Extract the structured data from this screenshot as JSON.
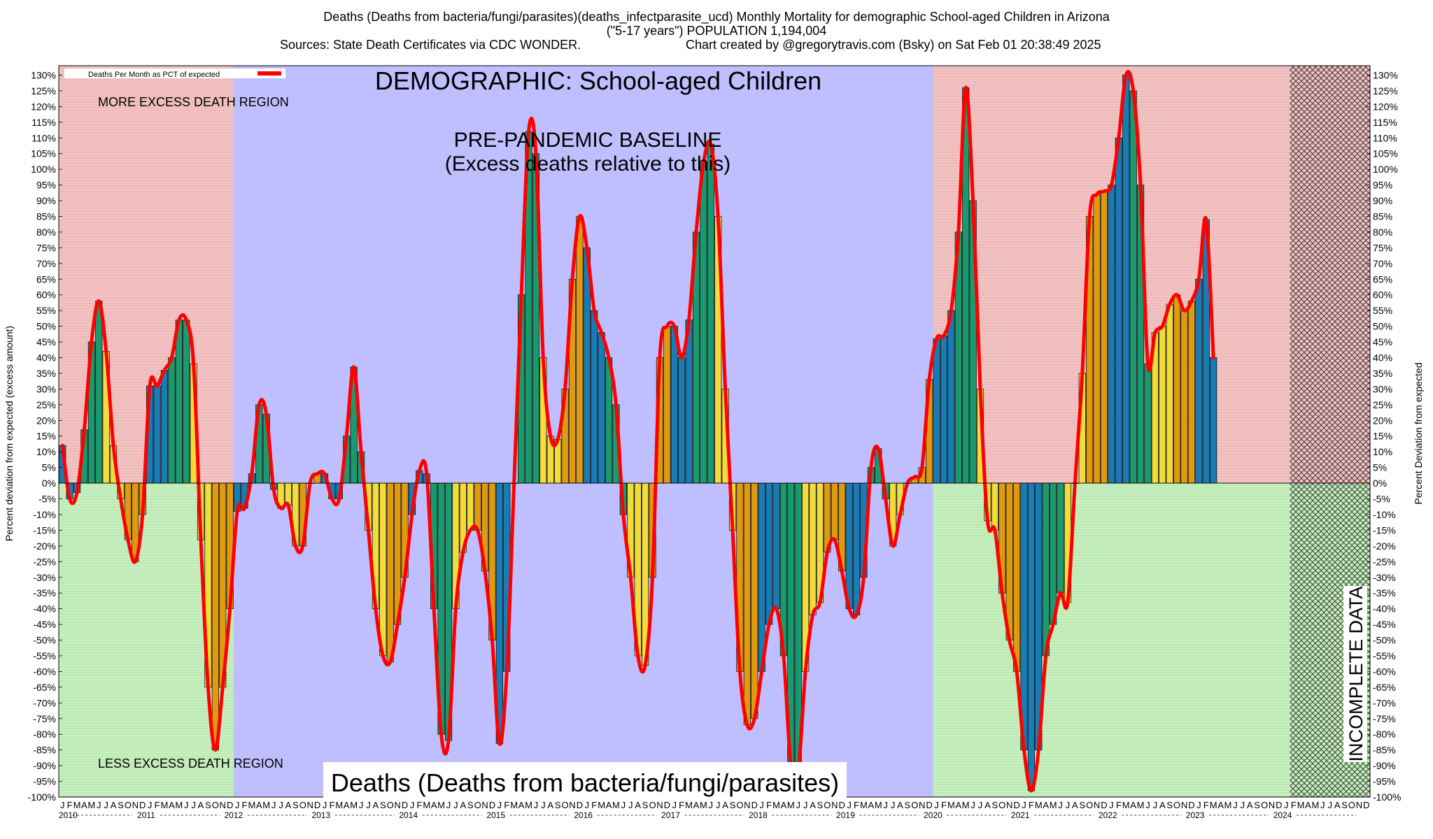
{
  "title": {
    "line1": "Deaths (Deaths from bacteria/fungi/parasites)(deaths_infectparasite_ucd) Monthly Mortality for demographic School-aged Children in Arizona",
    "line2": "(\"5-17 years\") POPULATION 1,194,004",
    "line3_sources": "Sources: State Death Certificates via CDC WONDER.",
    "line3_credit": "Chart created by @gregorytravis.com (Bsky) on Sat Feb 01 20:38:49 2025"
  },
  "legend": {
    "label": "Deaths Per Month as PCT of expected",
    "color": "#ff0000"
  },
  "annotations": {
    "demographic": "DEMOGRAPHIC: School-aged Children",
    "baseline_line1": "PRE-PANDEMIC BASELINE",
    "baseline_line2": "(Excess deaths relative to this)",
    "more_region": "MORE EXCESS DEATH REGION",
    "less_region": "LESS EXCESS DEATH REGION",
    "bottom_label": "Deaths (Deaths from bacteria/fungi/parasites)",
    "incomplete": "INCOMPLETE DATA"
  },
  "colors": {
    "excess_region": "#f3c4c4",
    "less_region": "#c8f0c0",
    "baseline_region": "#bfbfff",
    "bar_colors": [
      "#1a7cb5",
      "#1a9a6e",
      "#f2dc3a",
      "#e09a10"
    ],
    "line": "#ff0000"
  },
  "chart_data": {
    "type": "bar",
    "ylabel_left": "Percent deviation from expected (excess amount)",
    "ylabel_right": "Percent Deviation from expected",
    "ylim": [
      -100,
      133
    ],
    "y_tick_step": 5,
    "month_letters": [
      "J",
      "F",
      "M",
      "A",
      "M",
      "J",
      "J",
      "A",
      "S",
      "O",
      "N",
      "D"
    ],
    "years": [
      "2010",
      "2011",
      "2012",
      "2013",
      "2014",
      "2015",
      "2016",
      "2017",
      "2018",
      "2019",
      "2020",
      "2021",
      "2022",
      "2023",
      "2024"
    ],
    "baseline_years": [
      "2012",
      "2013",
      "2014",
      "2015",
      "2016",
      "2017",
      "2018",
      "2019"
    ],
    "incomplete_from": "2024-02",
    "series": [
      {
        "values": [
          12,
          -5,
          -3,
          17,
          45,
          58,
          42,
          12,
          -5,
          -18,
          -25,
          -10,
          31,
          31,
          36,
          40,
          52,
          52,
          38,
          -18,
          -65,
          -85,
          -65,
          -40,
          -9,
          -8,
          3,
          25,
          22,
          -2,
          -8,
          -7,
          -20,
          -20,
          0,
          3,
          3,
          -5,
          -5,
          15,
          37,
          10,
          -15,
          -40,
          -55,
          -57,
          -45,
          -30,
          -10,
          4,
          3,
          -40,
          -80,
          -82,
          -40,
          -22,
          -15,
          -15,
          -28,
          -50,
          -83,
          -60,
          0,
          60,
          112,
          105,
          40,
          15,
          14,
          30,
          65,
          85,
          75,
          55,
          48,
          40,
          25,
          -10,
          -30,
          -55,
          -58,
          -30,
          40,
          50,
          50,
          40,
          52,
          80,
          102,
          108,
          85,
          30,
          -15,
          -60,
          -77,
          -75,
          -60,
          -45,
          -40,
          -55,
          -90,
          -92,
          -60,
          -42,
          -38,
          -22,
          -18,
          -28,
          -40,
          -42,
          -30,
          5,
          11,
          -5,
          -20,
          -10,
          0,
          2,
          5,
          33,
          46,
          47,
          55,
          80,
          126,
          90,
          30,
          -12,
          -15,
          -35,
          -50,
          -60,
          -85,
          -98,
          -85,
          -55,
          -45,
          -35,
          -38,
          0,
          35,
          85,
          92,
          93,
          95,
          110,
          130,
          125,
          95,
          38,
          48,
          50,
          57,
          60,
          55,
          58,
          65,
          84,
          40
        ]
      }
    ]
  }
}
